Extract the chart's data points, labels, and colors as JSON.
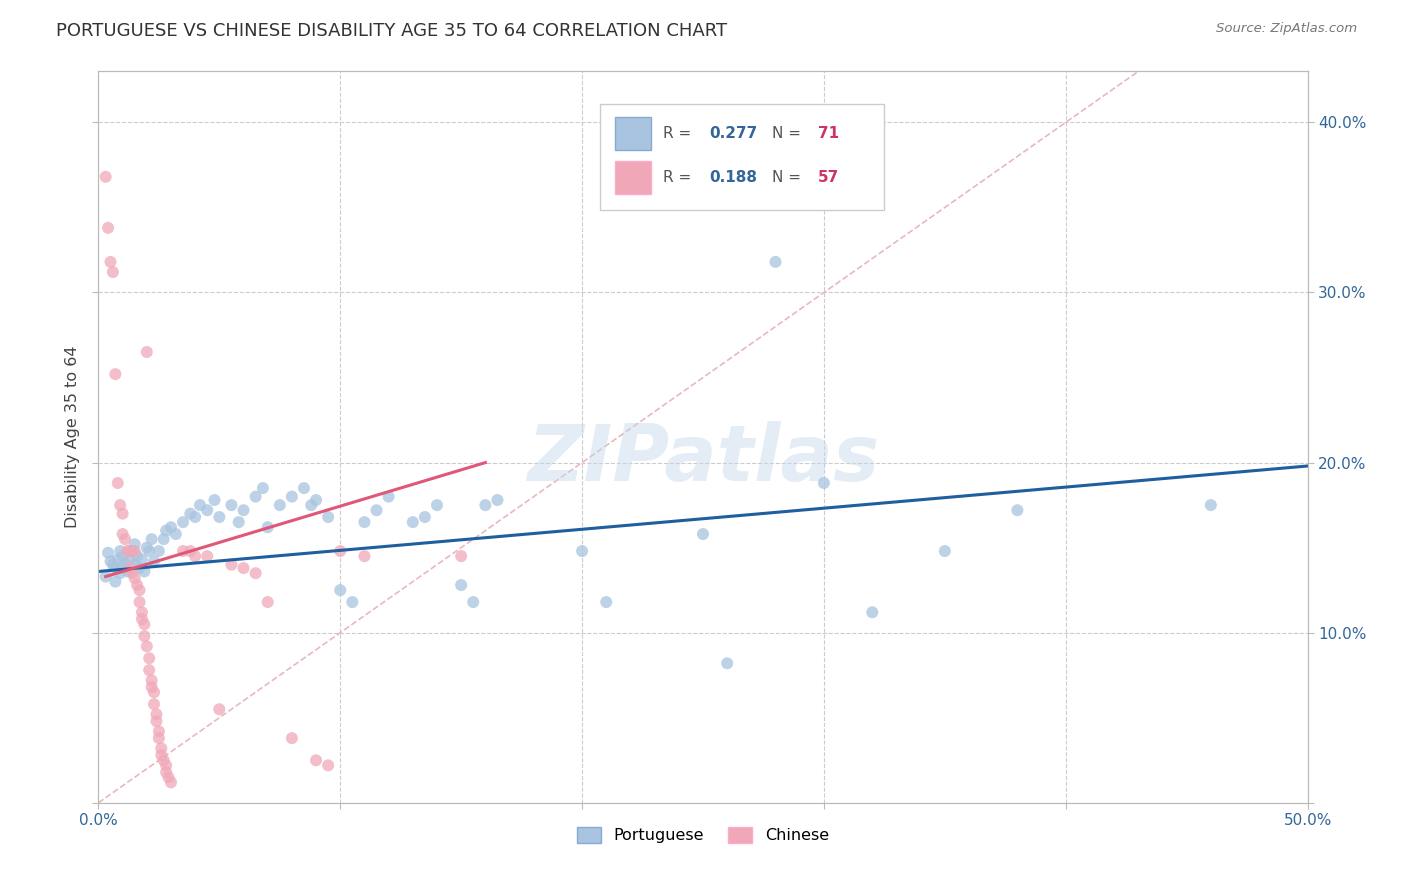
{
  "title": "PORTUGUESE VS CHINESE DISABILITY AGE 35 TO 64 CORRELATION CHART",
  "source": "Source: ZipAtlas.com",
  "ylabel": "Disability Age 35 to 64",
  "xlim": [
    0.0,
    0.5
  ],
  "ylim": [
    0.0,
    0.43
  ],
  "xticks": [
    0.0,
    0.1,
    0.2,
    0.3,
    0.4,
    0.5
  ],
  "yticks": [
    0.0,
    0.1,
    0.2,
    0.3,
    0.4
  ],
  "xticklabels": [
    "0.0%",
    "",
    "",
    "",
    "",
    "50.0%"
  ],
  "yticklabels_right": [
    "",
    "10.0%",
    "20.0%",
    "30.0%",
    "40.0%"
  ],
  "portuguese_R": 0.277,
  "portuguese_N": 71,
  "chinese_R": 0.188,
  "chinese_N": 57,
  "blue_color": "#a8c4e0",
  "pink_color": "#f0a8b8",
  "blue_line_color": "#1e5fa0",
  "pink_line_color": "#e05878",
  "diagonal_color": "#e8b8c0",
  "portuguese_data": [
    [
      0.003,
      0.133
    ],
    [
      0.004,
      0.147
    ],
    [
      0.005,
      0.142
    ],
    [
      0.006,
      0.14
    ],
    [
      0.007,
      0.138
    ],
    [
      0.007,
      0.13
    ],
    [
      0.008,
      0.143
    ],
    [
      0.009,
      0.148
    ],
    [
      0.009,
      0.135
    ],
    [
      0.01,
      0.145
    ],
    [
      0.01,
      0.138
    ],
    [
      0.011,
      0.141
    ],
    [
      0.012,
      0.136
    ],
    [
      0.013,
      0.143
    ],
    [
      0.014,
      0.148
    ],
    [
      0.015,
      0.152
    ],
    [
      0.015,
      0.14
    ],
    [
      0.016,
      0.145
    ],
    [
      0.017,
      0.138
    ],
    [
      0.018,
      0.143
    ],
    [
      0.019,
      0.136
    ],
    [
      0.02,
      0.15
    ],
    [
      0.021,
      0.148
    ],
    [
      0.022,
      0.155
    ],
    [
      0.023,
      0.142
    ],
    [
      0.025,
      0.148
    ],
    [
      0.027,
      0.155
    ],
    [
      0.028,
      0.16
    ],
    [
      0.03,
      0.162
    ],
    [
      0.032,
      0.158
    ],
    [
      0.035,
      0.165
    ],
    [
      0.038,
      0.17
    ],
    [
      0.04,
      0.168
    ],
    [
      0.042,
      0.175
    ],
    [
      0.045,
      0.172
    ],
    [
      0.048,
      0.178
    ],
    [
      0.05,
      0.168
    ],
    [
      0.055,
      0.175
    ],
    [
      0.058,
      0.165
    ],
    [
      0.06,
      0.172
    ],
    [
      0.065,
      0.18
    ],
    [
      0.068,
      0.185
    ],
    [
      0.07,
      0.162
    ],
    [
      0.075,
      0.175
    ],
    [
      0.08,
      0.18
    ],
    [
      0.085,
      0.185
    ],
    [
      0.088,
      0.175
    ],
    [
      0.09,
      0.178
    ],
    [
      0.095,
      0.168
    ],
    [
      0.1,
      0.125
    ],
    [
      0.105,
      0.118
    ],
    [
      0.11,
      0.165
    ],
    [
      0.115,
      0.172
    ],
    [
      0.12,
      0.18
    ],
    [
      0.13,
      0.165
    ],
    [
      0.135,
      0.168
    ],
    [
      0.14,
      0.175
    ],
    [
      0.15,
      0.128
    ],
    [
      0.155,
      0.118
    ],
    [
      0.16,
      0.175
    ],
    [
      0.165,
      0.178
    ],
    [
      0.2,
      0.148
    ],
    [
      0.21,
      0.118
    ],
    [
      0.25,
      0.158
    ],
    [
      0.26,
      0.082
    ],
    [
      0.28,
      0.318
    ],
    [
      0.3,
      0.188
    ],
    [
      0.32,
      0.112
    ],
    [
      0.35,
      0.148
    ],
    [
      0.38,
      0.172
    ],
    [
      0.46,
      0.175
    ]
  ],
  "chinese_data": [
    [
      0.003,
      0.368
    ],
    [
      0.004,
      0.338
    ],
    [
      0.005,
      0.318
    ],
    [
      0.006,
      0.312
    ],
    [
      0.007,
      0.252
    ],
    [
      0.008,
      0.188
    ],
    [
      0.009,
      0.175
    ],
    [
      0.01,
      0.17
    ],
    [
      0.01,
      0.158
    ],
    [
      0.011,
      0.155
    ],
    [
      0.012,
      0.148
    ],
    [
      0.013,
      0.148
    ],
    [
      0.013,
      0.138
    ],
    [
      0.014,
      0.135
    ],
    [
      0.015,
      0.132
    ],
    [
      0.015,
      0.148
    ],
    [
      0.016,
      0.128
    ],
    [
      0.017,
      0.125
    ],
    [
      0.017,
      0.118
    ],
    [
      0.018,
      0.112
    ],
    [
      0.018,
      0.108
    ],
    [
      0.019,
      0.105
    ],
    [
      0.019,
      0.098
    ],
    [
      0.02,
      0.265
    ],
    [
      0.02,
      0.092
    ],
    [
      0.021,
      0.085
    ],
    [
      0.021,
      0.078
    ],
    [
      0.022,
      0.072
    ],
    [
      0.022,
      0.068
    ],
    [
      0.023,
      0.065
    ],
    [
      0.023,
      0.058
    ],
    [
      0.024,
      0.052
    ],
    [
      0.024,
      0.048
    ],
    [
      0.025,
      0.042
    ],
    [
      0.025,
      0.038
    ],
    [
      0.026,
      0.032
    ],
    [
      0.026,
      0.028
    ],
    [
      0.027,
      0.025
    ],
    [
      0.028,
      0.022
    ],
    [
      0.028,
      0.018
    ],
    [
      0.029,
      0.015
    ],
    [
      0.03,
      0.012
    ],
    [
      0.035,
      0.148
    ],
    [
      0.038,
      0.148
    ],
    [
      0.04,
      0.145
    ],
    [
      0.045,
      0.145
    ],
    [
      0.05,
      0.055
    ],
    [
      0.055,
      0.14
    ],
    [
      0.06,
      0.138
    ],
    [
      0.065,
      0.135
    ],
    [
      0.07,
      0.118
    ],
    [
      0.08,
      0.038
    ],
    [
      0.09,
      0.025
    ],
    [
      0.095,
      0.022
    ],
    [
      0.1,
      0.148
    ],
    [
      0.11,
      0.145
    ],
    [
      0.15,
      0.145
    ]
  ],
  "port_line": [
    [
      0.0,
      0.136
    ],
    [
      0.5,
      0.198
    ]
  ],
  "chin_line": [
    [
      0.003,
      0.133
    ],
    [
      0.16,
      0.2
    ]
  ],
  "diag_line": [
    [
      0.0,
      0.0
    ],
    [
      0.43,
      0.43
    ]
  ]
}
